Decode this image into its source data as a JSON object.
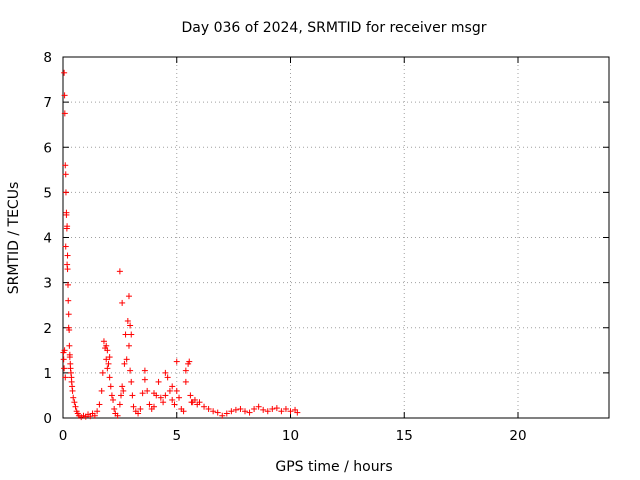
{
  "chart_data": {
    "type": "scatter",
    "title": "Day 036 of 2024, SRMTID for receiver msgr",
    "xlabel": "GPS time / hours",
    "ylabel": "SRMTID / TECUs",
    "xlim": [
      0,
      24
    ],
    "ylim": [
      0,
      8
    ],
    "xticks": [
      0,
      5,
      10,
      15,
      20
    ],
    "yticks": [
      0,
      1,
      2,
      3,
      4,
      5,
      6,
      7,
      8
    ],
    "grid": true,
    "marker": "plus",
    "marker_color": "#ff0000",
    "series": [
      {
        "name": "SRMTID",
        "x": [
          0.05,
          0.07,
          0.08,
          0.1,
          0.12,
          0.13,
          0.15,
          0.17,
          0.18,
          0.2,
          0.22,
          0.23,
          0.25,
          0.27,
          0.28,
          0.3,
          0.32,
          0.33,
          0.35,
          0.37,
          0.38,
          0.4,
          0.42,
          0.45,
          0.5,
          0.55,
          0.6,
          0.65,
          0.7,
          0.02,
          0.03,
          0.05,
          0.07,
          0.1,
          0.12,
          0.15,
          0.18,
          0.2,
          0.25,
          0.3,
          0.8,
          0.9,
          1.0,
          1.1,
          1.2,
          1.3,
          1.4,
          1.5,
          1.6,
          1.7,
          1.75,
          1.8,
          1.85,
          1.9,
          1.95,
          2.0,
          2.05,
          2.1,
          2.15,
          2.2,
          2.25,
          2.3,
          2.4,
          2.5,
          2.55,
          2.6,
          2.65,
          2.7,
          2.75,
          2.8,
          2.85,
          2.9,
          2.95,
          3.0,
          3.05,
          3.1,
          3.2,
          3.3,
          3.4,
          3.5,
          3.6,
          3.7,
          3.8,
          3.9,
          4.0,
          4.1,
          4.2,
          4.3,
          4.4,
          4.5,
          4.6,
          4.7,
          4.8,
          4.9,
          5.0,
          5.1,
          5.2,
          5.3,
          5.4,
          5.5,
          5.6,
          5.7,
          5.8,
          5.9,
          6.0,
          6.2,
          6.4,
          6.6,
          6.8,
          7.0,
          7.2,
          7.4,
          7.6,
          7.8,
          8.0,
          8.2,
          8.4,
          8.6,
          8.8,
          9.0,
          9.2,
          9.4,
          9.6,
          9.8,
          10.0,
          10.2,
          10.3,
          2.5,
          2.6,
          2.9,
          2.95,
          3.0,
          3.6,
          4.0,
          4.5,
          4.8,
          5.0,
          5.4,
          5.55,
          5.65,
          2.05,
          1.9,
          1.95
        ],
        "y": [
          7.65,
          7.15,
          6.75,
          5.6,
          5.4,
          5.0,
          4.5,
          4.2,
          3.4,
          3.3,
          2.95,
          2.6,
          2.3,
          1.95,
          1.6,
          1.4,
          1.2,
          1.1,
          1.0,
          0.9,
          0.8,
          0.7,
          0.6,
          0.45,
          0.35,
          0.25,
          0.15,
          0.1,
          0.05,
          1.45,
          1.3,
          1.1,
          1.5,
          0.9,
          3.8,
          4.55,
          4.25,
          3.6,
          2.0,
          1.35,
          0.02,
          0.05,
          0.03,
          0.08,
          0.04,
          0.1,
          0.05,
          0.15,
          0.3,
          0.6,
          1.0,
          1.7,
          1.55,
          1.3,
          1.5,
          1.2,
          0.9,
          0.7,
          0.5,
          0.4,
          0.2,
          0.1,
          0.05,
          0.3,
          0.5,
          0.7,
          0.6,
          1.2,
          1.85,
          1.3,
          2.15,
          1.6,
          1.05,
          0.8,
          0.5,
          0.25,
          0.15,
          0.1,
          0.2,
          0.55,
          1.05,
          0.6,
          0.3,
          0.2,
          0.25,
          0.5,
          0.8,
          0.45,
          0.35,
          0.5,
          0.9,
          0.6,
          0.4,
          0.3,
          0.6,
          0.45,
          0.2,
          0.15,
          0.8,
          1.2,
          0.5,
          0.35,
          0.4,
          0.3,
          0.35,
          0.25,
          0.2,
          0.15,
          0.12,
          0.05,
          0.1,
          0.15,
          0.18,
          0.2,
          0.15,
          0.12,
          0.2,
          0.25,
          0.18,
          0.15,
          0.2,
          0.22,
          0.15,
          0.2,
          0.15,
          0.18,
          0.12,
          3.25,
          2.55,
          2.7,
          2.05,
          1.85,
          0.85,
          0.55,
          1.0,
          0.7,
          1.25,
          1.05,
          1.25,
          0.35,
          1.35,
          1.6,
          1.1
        ]
      }
    ]
  }
}
